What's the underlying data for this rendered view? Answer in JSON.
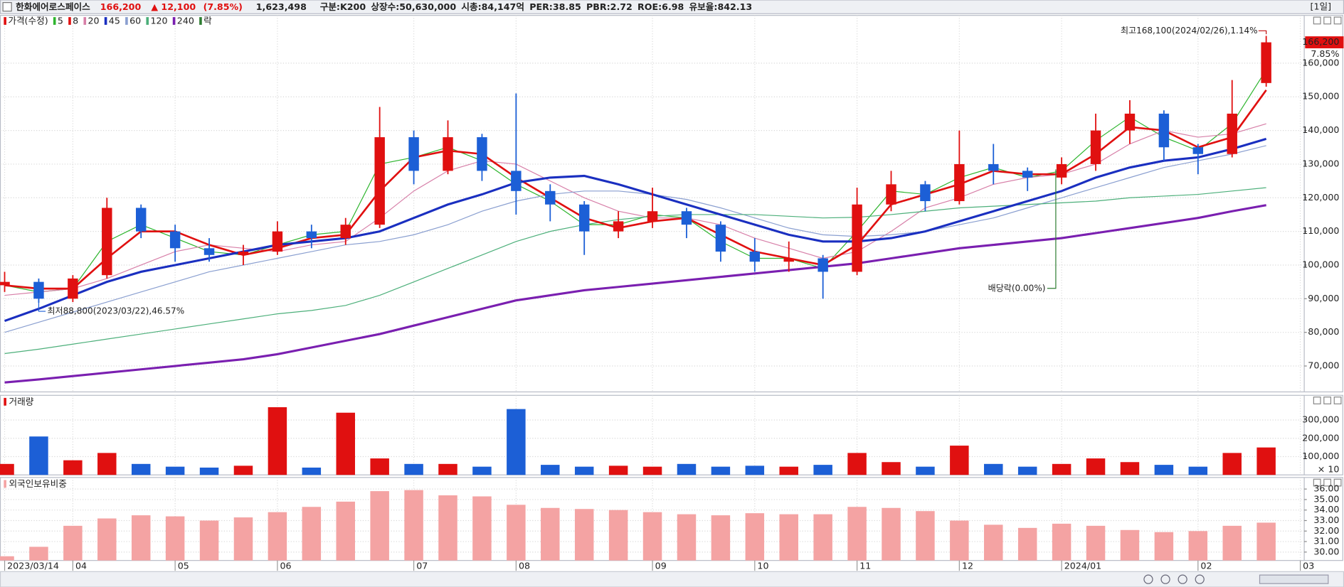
{
  "header": {
    "name": "한화에어로스페이스",
    "price": "166,200",
    "change": "▲ 12,100",
    "change_pct": "(7.85%)",
    "volume": "1,623,498",
    "info": [
      "구분:K200",
      "상장수:50,630,000",
      "시총:84,147억",
      "PER:38.85",
      "PBR:2.72",
      "ROE:6.98",
      "유보율:842.13"
    ],
    "period": "[1일]"
  },
  "chart_data": [
    {
      "type": "candlestick",
      "legend_title": "가격(수정)",
      "legend_extra": "락",
      "legend_extra_color": "#2e7d32",
      "up_color": "#e01010",
      "down_color": "#1c5fd6",
      "grid": true,
      "ylim": [
        62300,
        174200
      ],
      "yticks": [
        {
          "value": 70000,
          "label": "70,000"
        },
        {
          "value": 80000,
          "label": "80,000"
        },
        {
          "value": 90000,
          "label": "90,000"
        },
        {
          "value": 100000,
          "label": "100,000"
        },
        {
          "value": 110000,
          "label": "110,000"
        },
        {
          "value": 120000,
          "label": "120,000"
        },
        {
          "value": 130000,
          "label": "130,000"
        },
        {
          "value": 140000,
          "label": "140,000"
        },
        {
          "value": 150000,
          "label": "150,000"
        },
        {
          "value": 160000,
          "label": "160,000"
        }
      ],
      "open": [
        94000,
        95000,
        90000,
        97000,
        117000,
        110000,
        105000,
        103000,
        104000,
        110000,
        108000,
        112000,
        138000,
        128000,
        138000,
        128000,
        122000,
        118000,
        110000,
        113000,
        116000,
        112000,
        104000,
        101000,
        102000,
        98000,
        118000,
        124000,
        119000,
        130000,
        128000,
        126000,
        130000,
        140000,
        145000,
        135000,
        133000,
        154100,
        null
      ],
      "high": [
        98000,
        96000,
        97000,
        120000,
        118000,
        112000,
        108000,
        106000,
        113000,
        112000,
        114000,
        147000,
        140000,
        143000,
        139000,
        151000,
        124000,
        119000,
        116000,
        123000,
        117000,
        113000,
        108000,
        107000,
        103000,
        123000,
        128000,
        125000,
        140000,
        136000,
        129000,
        132000,
        145000,
        149000,
        146000,
        136000,
        155000,
        168100,
        null
      ],
      "low": [
        92000,
        88800,
        89000,
        96000,
        108000,
        101000,
        101000,
        100000,
        103000,
        105000,
        106000,
        111000,
        124000,
        127000,
        125000,
        115000,
        113000,
        103000,
        108000,
        111000,
        108000,
        101000,
        98000,
        98000,
        90000,
        97000,
        116000,
        116000,
        118000,
        124000,
        122000,
        124000,
        128000,
        136000,
        131000,
        127000,
        132000,
        153000,
        null
      ],
      "close": [
        95000,
        90000,
        96000,
        117000,
        110000,
        105000,
        103000,
        104000,
        110000,
        108000,
        112000,
        138000,
        128000,
        138000,
        128000,
        122000,
        118000,
        110000,
        113000,
        116000,
        112000,
        104000,
        101000,
        102000,
        98000,
        118000,
        124000,
        119000,
        130000,
        128000,
        126000,
        130000,
        140000,
        145000,
        135000,
        133000,
        145000,
        166200,
        null
      ],
      "last_label": "166,200",
      "last_change_label": "7.85%",
      "max_label": "최고168,100(2024/02/26),1.14%",
      "min_label": "최저88,800(2023/03/22),46.57%",
      "dividend_label": "배당락(0.00%)",
      "series": [
        {
          "name": "5",
          "color": "#2fb52f",
          "width": 1,
          "values": [
            94000,
            92000,
            93000,
            107000,
            112000,
            108000,
            104000,
            103000,
            106000,
            109000,
            110000,
            130000,
            132000,
            135000,
            131000,
            124000,
            119000,
            112000,
            112000,
            115000,
            114000,
            107000,
            102000,
            102000,
            99000,
            110000,
            122000,
            121000,
            126000,
            129000,
            126000,
            128000,
            137000,
            144000,
            138000,
            134000,
            142000,
            158000,
            null
          ]
        },
        {
          "name": "8",
          "color": "#e01010",
          "width": 2.2,
          "values": [
            94000,
            93000,
            93000,
            102000,
            110000,
            110000,
            106000,
            103000,
            105000,
            108000,
            109000,
            122000,
            132000,
            134000,
            133000,
            126000,
            120000,
            114000,
            111000,
            113000,
            114000,
            109000,
            104000,
            102000,
            100000,
            106000,
            118000,
            121000,
            124000,
            128000,
            127000,
            127000,
            133000,
            141000,
            140000,
            135000,
            138000,
            152000,
            null
          ]
        },
        {
          "name": "20",
          "color": "#d77fa8",
          "width": 1,
          "values": [
            91000,
            92000,
            93000,
            96000,
            100000,
            104000,
            106000,
            105000,
            104000,
            106000,
            107000,
            114000,
            122000,
            128000,
            131000,
            130000,
            125000,
            120000,
            116000,
            114000,
            114000,
            112000,
            108000,
            105000,
            102000,
            104000,
            110000,
            117000,
            120000,
            124000,
            126000,
            127000,
            130000,
            136000,
            140000,
            138000,
            139000,
            142000,
            null
          ]
        },
        {
          "name": "45",
          "color": "#1a2fc0",
          "width": 2.6,
          "values": [
            83400,
            87000,
            91000,
            95000,
            98000,
            100000,
            102000,
            104000,
            106000,
            107000,
            108000,
            110000,
            114000,
            118000,
            121000,
            124500,
            126000,
            126500,
            124000,
            121000,
            118000,
            115000,
            112000,
            109000,
            107000,
            107000,
            108000,
            110000,
            113000,
            116000,
            119000,
            122000,
            126000,
            129000,
            131000,
            132000,
            134500,
            137500,
            null
          ]
        },
        {
          "name": "60",
          "color": "#8a9fd0",
          "width": 1,
          "values": [
            80000,
            83000,
            86000,
            89000,
            92000,
            95000,
            98000,
            100000,
            102000,
            104000,
            106000,
            107000,
            109000,
            112000,
            116000,
            119000,
            121000,
            122000,
            122000,
            121000,
            119500,
            117000,
            114000,
            111000,
            109000,
            108500,
            109000,
            110000,
            112000,
            114000,
            117000,
            120000,
            123000,
            126000,
            129000,
            131000,
            133000,
            135500,
            null
          ]
        },
        {
          "name": "120",
          "color": "#4caf7a",
          "width": 1,
          "values": [
            73700,
            75000,
            76500,
            78000,
            79500,
            81000,
            82500,
            84000,
            85500,
            86500,
            88000,
            91000,
            95000,
            99000,
            103000,
            107000,
            110000,
            112000,
            113500,
            114500,
            115000,
            115000,
            115000,
            114500,
            114000,
            114200,
            115000,
            116000,
            117000,
            117500,
            118000,
            118500,
            119000,
            120000,
            120500,
            121000,
            122000,
            123000,
            null
          ]
        },
        {
          "name": "240",
          "color": "#7a1fb0",
          "width": 2.6,
          "values": [
            65100,
            66000,
            67000,
            68000,
            69000,
            70000,
            71000,
            72000,
            73500,
            75500,
            77500,
            79500,
            82000,
            84500,
            87000,
            89500,
            91000,
            92500,
            93500,
            94500,
            95500,
            96500,
            97500,
            98500,
            99500,
            100500,
            102000,
            103500,
            105000,
            106000,
            107000,
            108000,
            109500,
            111000,
            112500,
            114000,
            116000,
            117800,
            null
          ]
        }
      ]
    },
    {
      "type": "bar",
      "title": "거래량",
      "unit_label": "× 10",
      "color_by_candle": true,
      "grid": true,
      "ylim": [
        0,
        435000
      ],
      "yticks": [
        {
          "value": 100000,
          "label": "100,000"
        },
        {
          "value": 200000,
          "label": "200,000"
        },
        {
          "value": 300000,
          "label": "300,000"
        }
      ],
      "values": [
        60000,
        210000,
        80000,
        120000,
        60000,
        45000,
        40000,
        50000,
        370000,
        40000,
        340000,
        90000,
        60000,
        60000,
        45000,
        360000,
        55000,
        45000,
        50000,
        45000,
        60000,
        45000,
        50000,
        45000,
        55000,
        120000,
        70000,
        45000,
        160000,
        60000,
        45000,
        60000,
        90000,
        70000,
        55000,
        45000,
        120000,
        150000,
        null
      ]
    },
    {
      "type": "bar",
      "title": "외국인보유비중",
      "color": "#f4a3a3",
      "grid": true,
      "ylim": [
        29.2,
        37.1
      ],
      "yticks": [
        {
          "value": 30,
          "label": "30.00"
        },
        {
          "value": 31,
          "label": "31.00"
        },
        {
          "value": 32,
          "label": "32.00"
        },
        {
          "value": 33,
          "label": "33.00"
        },
        {
          "value": 34,
          "label": "34.00"
        },
        {
          "value": 35,
          "label": "35.00"
        },
        {
          "value": 36,
          "label": "36.00"
        }
      ],
      "values": [
        29.6,
        30.5,
        32.5,
        33.2,
        33.5,
        33.4,
        33.0,
        33.3,
        33.8,
        34.3,
        34.8,
        35.8,
        35.9,
        35.4,
        35.3,
        34.5,
        34.2,
        34.1,
        34.0,
        33.8,
        33.6,
        33.5,
        33.7,
        33.6,
        33.6,
        34.3,
        34.2,
        33.9,
        33.0,
        32.6,
        32.3,
        32.7,
        32.5,
        32.1,
        31.9,
        32.0,
        32.5,
        32.8,
        null
      ],
      "categories": [
        "2023/03/14",
        null,
        "04",
        null,
        null,
        "05",
        null,
        null,
        "06",
        null,
        null,
        null,
        "07",
        null,
        null,
        "08",
        null,
        null,
        null,
        "09",
        null,
        null,
        "10",
        null,
        null,
        "11",
        null,
        null,
        "12",
        null,
        null,
        "2024/01",
        null,
        null,
        null,
        "02",
        null,
        null,
        "03"
      ]
    }
  ]
}
